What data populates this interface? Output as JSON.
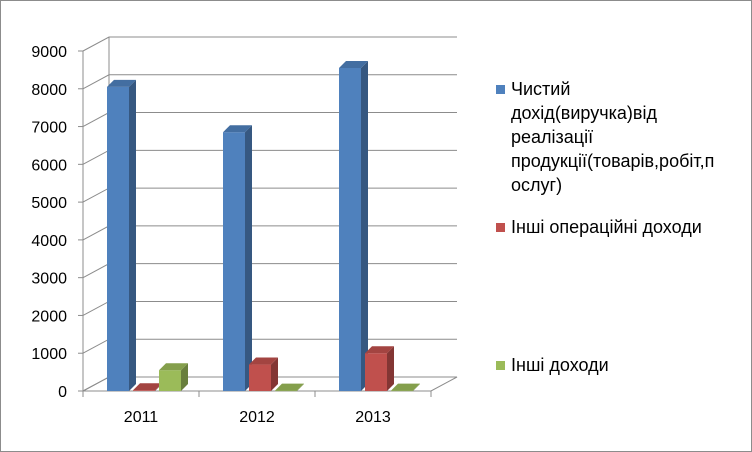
{
  "chart_data": {
    "type": "bar",
    "categories": [
      "2011",
      "2012",
      "2013"
    ],
    "series": [
      {
        "name": "Чистий дохід(виручка)від реалізації продукції(товарів,робіт,послуг)",
        "values": [
          8050,
          6850,
          8550
        ],
        "color": "#4f81bd"
      },
      {
        "name": "Інші операційні доходи",
        "values": [
          20,
          700,
          1000
        ],
        "color": "#c0504d"
      },
      {
        "name": "Інші доходи",
        "values": [
          550,
          10,
          10
        ],
        "color": "#9bbb59"
      }
    ],
    "y_ticks": [
      "0",
      "1000",
      "2000",
      "3000",
      "4000",
      "5000",
      "6000",
      "7000",
      "8000",
      "9000"
    ],
    "ylim": [
      0,
      9000
    ],
    "grid": true,
    "legend_position": "right",
    "legend_labels": [
      "Чистий\nдохід(виручка)від\nреалізації\nпродукції(товарів,робіт,п\nослуг)",
      "Інші операційні доходи",
      "Інші доходи"
    ]
  }
}
